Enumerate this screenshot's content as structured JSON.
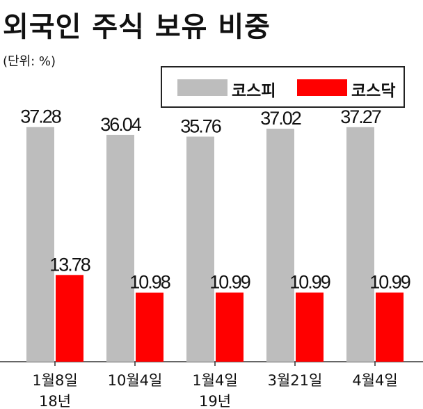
{
  "title": "외국인 주식 보유 비중",
  "unit": "(단위: %)",
  "chart_data": {
    "type": "bar",
    "categories": [
      "1월8일\n18년",
      "10월4일",
      "1월4일\n19년",
      "3월21일",
      "4월4일"
    ],
    "series": [
      {
        "name": "코스피",
        "color": "#bdbdbd",
        "values": [
          37.28,
          36.04,
          35.76,
          37.02,
          37.27
        ]
      },
      {
        "name": "코스닥",
        "color": "#ff0000",
        "values": [
          13.78,
          10.98,
          10.99,
          10.99,
          10.99
        ]
      }
    ],
    "value_labels": [
      [
        "37.28",
        "36.04",
        "35.76",
        "37.02",
        "37.27"
      ],
      [
        "13.78",
        "10.98",
        "10.99",
        "10.99",
        "10.99"
      ]
    ],
    "ylim": [
      0,
      42
    ],
    "grid": false,
    "legend": "top-right"
  }
}
